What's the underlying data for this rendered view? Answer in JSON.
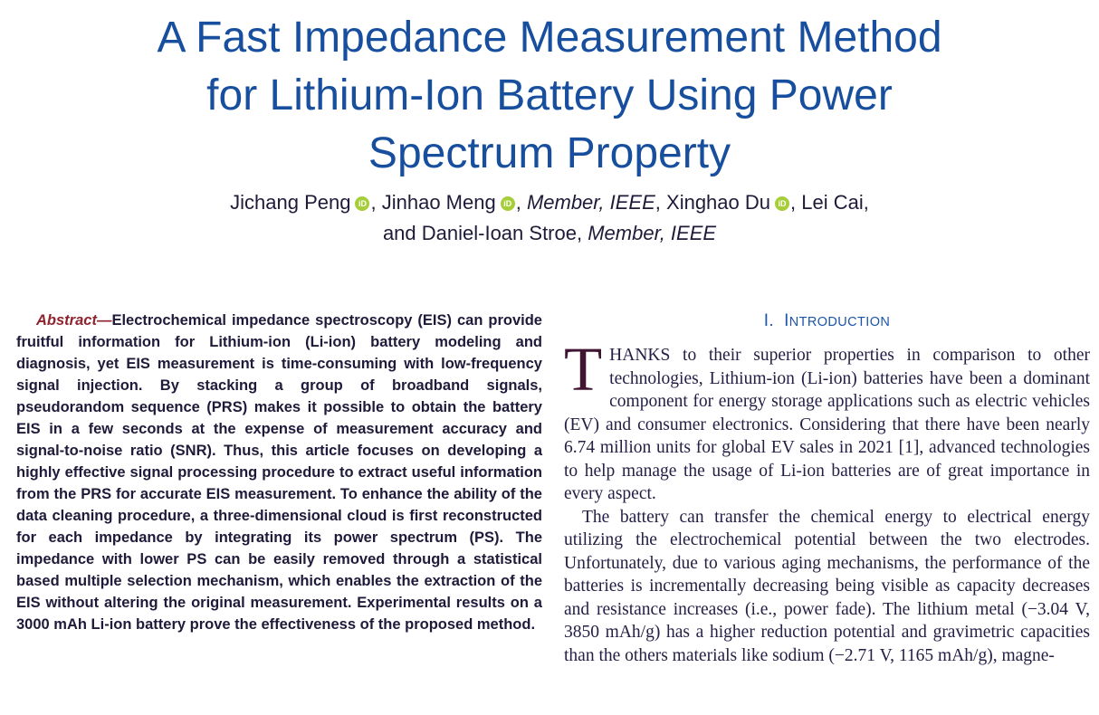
{
  "colors": {
    "title_blue": "#174f9e",
    "heading_blue": "#1a55aa",
    "abstract_label_maroon": "#8e222d",
    "abstract_text": "#201a3a",
    "body_text": "#242045",
    "dropcap_plum": "#401531",
    "orcid_green": "#a6ce39"
  },
  "title": {
    "line1": "A Fast Impedance Measurement Method",
    "line2": "for Lithium-Ion Battery Using Power",
    "line3": "Spectrum Property"
  },
  "icons": {
    "orcid_label": "iD"
  },
  "byline": {
    "line1": {
      "author1": "Jichang Peng",
      "comma1": ", ",
      "author2": "Jinhao Meng",
      "comma2": ", ",
      "member1": "Member, IEEE",
      "comma3": ", ",
      "author3": "Xinghao Du",
      "comma4": ", ",
      "author4": "Lei Cai,"
    },
    "line2": {
      "prefix": "and ",
      "author5": "Daniel-Ioan Stroe",
      "comma1": ", ",
      "member2": "Member, IEEE"
    }
  },
  "abstract": {
    "label": "Abstract",
    "dash": "—",
    "text": "Electrochemical impedance spectroscopy (EIS) can provide fruitful information for Lithium-ion (Li-ion) battery modeling and diagnosis, yet EIS measurement is time-consuming with low-frequency signal injection. By stacking a group of broadband signals, pseudorandom sequence (PRS) makes it possible to obtain the battery EIS in a few seconds at the expense of measurement accuracy and signal-to-noise ratio (SNR). Thus, this article focuses on developing a highly effective signal processing procedure to extract useful information from the PRS for accurate EIS measurement. To enhance the ability of the data cleaning procedure, a three-dimensional cloud is first reconstructed for each impedance by integrating its power spectrum (PS). The impedance with lower PS can be easily removed through a statistical based multiple selection mechanism, which enables the extraction of the EIS without altering the original measurement. Experimental results on a 3000 mAh Li-ion battery prove the effectiveness of the proposed method."
  },
  "introduction": {
    "heading": {
      "numeral": "I.",
      "word_initial": "I",
      "word_rest": "NTRODUCTION"
    },
    "dropcap": "T",
    "p1": "HANKS to their superior properties in comparison to other technologies, Lithium-ion (Li-ion) batteries have been a dominant component for energy storage applications such as electric vehicles (EV) and consumer electronics. Considering that there have been nearly 6.74 million units for global EV sales in 2021 [1], advanced technologies to help manage the usage of Li-ion batteries are of great importance in every aspect.",
    "p2": "The battery can transfer the chemical energy to electrical energy utilizing the electrochemical potential between the two electrodes. Unfortunately, due to various aging mechanisms, the performance of the batteries is incrementally decreasing being visible as capacity decreases and resistance increases (i.e., power fade). The lithium metal (−3.04 V, 3850 mAh/g) has a higher reduction potential and gravimetric capacities than the others materials like sodium (−2.71 V, 1165 mAh/g), magne-"
  }
}
